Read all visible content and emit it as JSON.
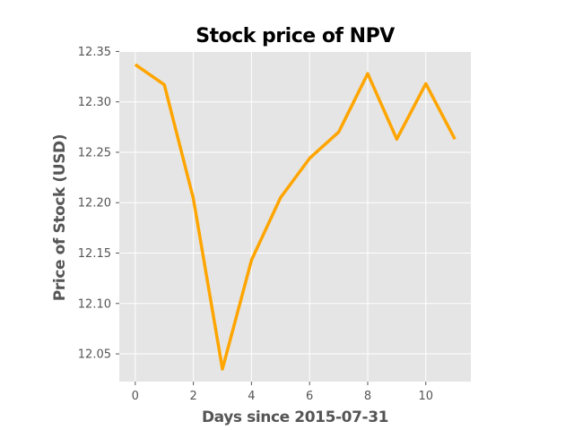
{
  "chart_data": {
    "type": "line",
    "title": "Stock price of NPV",
    "xlabel": "Days since 2015-07-31",
    "ylabel": "Price of Stock (USD)",
    "x": [
      0,
      1,
      2,
      3,
      4,
      5,
      6,
      7,
      8,
      9,
      10,
      11
    ],
    "series": [
      {
        "values": [
          12.337,
          12.317,
          12.204,
          12.035,
          12.143,
          12.205,
          12.244,
          12.27,
          12.328,
          12.263,
          12.318,
          12.263
        ],
        "color": "#FFA500"
      }
    ],
    "xlim": [
      -0.55,
      11.55
    ],
    "ylim": [
      12.0225,
      12.3495
    ],
    "xticks": [
      0,
      2,
      4,
      6,
      8,
      10
    ],
    "yticks": [
      12.05,
      12.1,
      12.15,
      12.2,
      12.25,
      12.3,
      12.35
    ],
    "ytick_labels": [
      "12.05",
      "12.10",
      "12.15",
      "12.20",
      "12.25",
      "12.30",
      "12.35"
    ],
    "grid": true,
    "style": "ggplot",
    "background_color": "#E5E5E5",
    "grid_color": "#FFFFFF"
  }
}
